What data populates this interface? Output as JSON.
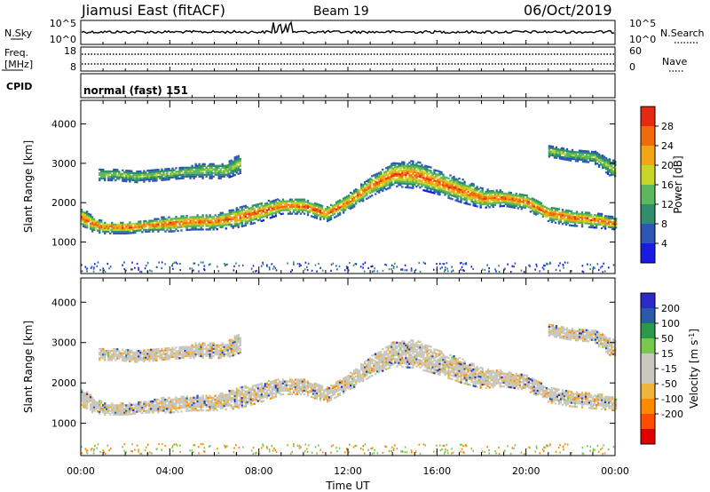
{
  "header": {
    "station": "Jiamusi East (fitACF)",
    "beam": "Beam 19",
    "date": "06/Oct/2019"
  },
  "noise_panel": {
    "left_label": "N.Sky",
    "right_label": "N.Search",
    "left_ticks": [
      "10^5",
      "10^0"
    ],
    "right_ticks": [
      "10^5",
      "10^0"
    ]
  },
  "freq_panel": {
    "label_line1": "Freq.",
    "label_line2": "[MHz]",
    "left_ticks": [
      "18",
      "8"
    ],
    "right_label": "Nave",
    "right_ticks": [
      "60",
      "0"
    ]
  },
  "cpid_panel": {
    "label": "CPID",
    "value": "normal (fast) 151"
  },
  "colors": {
    "power": [
      "#1a1ae6",
      "#2e57b5",
      "#2f8f6a",
      "#5cb85c",
      "#c4d628",
      "#f2a516",
      "#f06a0a",
      "#e62a10"
    ],
    "velocity": [
      "#e00000",
      "#ff4d00",
      "#ff8a00",
      "#f0b43c",
      "#c8c8c0",
      "#c8c8c0",
      "#78c850",
      "#2a9a4a",
      "#2a5aa8",
      "#2a2ac8"
    ]
  },
  "chart_data": [
    {
      "type": "heatmap",
      "name": "power",
      "ylabel": "Slant Range [km]",
      "y_ticks": [
        1000,
        2000,
        3000,
        4000
      ],
      "ylim": [
        200,
        4600
      ],
      "x_ticks": [
        "00:00",
        "04:00",
        "08:00",
        "12:00",
        "16:00",
        "20:00",
        "00:00"
      ],
      "colorbar": {
        "label": "Power [dB]",
        "ticks": [
          4,
          8,
          12,
          16,
          20,
          24,
          28
        ],
        "range": [
          0,
          32
        ]
      },
      "echo_bands": [
        {
          "hours": [
            0,
            0.5,
            1,
            2,
            3,
            4,
            5,
            6,
            7,
            8,
            9,
            10,
            11,
            12,
            13,
            14,
            15,
            16,
            17,
            18,
            19,
            20,
            21,
            22,
            23,
            24
          ],
          "center_km": [
            1600,
            1450,
            1350,
            1350,
            1400,
            1450,
            1500,
            1500,
            1600,
            1750,
            1900,
            1900,
            1700,
            2000,
            2400,
            2700,
            2700,
            2500,
            2300,
            2100,
            2100,
            2000,
            1700,
            1600,
            1550,
            1450
          ],
          "halfwidth_km": [
            250,
            200,
            150,
            150,
            150,
            200,
            200,
            200,
            250,
            250,
            200,
            200,
            200,
            200,
            250,
            300,
            350,
            300,
            300,
            250,
            200,
            200,
            200,
            200,
            200,
            150
          ]
        },
        {
          "hours": [
            0.8,
            1.5,
            2.5,
            3.5,
            4.5,
            5.5,
            6.5,
            7.2
          ],
          "center_km": [
            2700,
            2700,
            2650,
            2700,
            2750,
            2800,
            2800,
            3000
          ],
          "halfwidth_km": [
            150,
            150,
            150,
            150,
            150,
            200,
            200,
            250
          ]
        },
        {
          "hours": [
            21,
            22,
            23,
            24
          ],
          "center_km": [
            3300,
            3200,
            3150,
            2800
          ],
          "halfwidth_km": [
            150,
            150,
            150,
            250
          ]
        }
      ]
    },
    {
      "type": "heatmap",
      "name": "velocity",
      "ylabel": "Slant Range [km]",
      "xlabel": "Time UT",
      "y_ticks": [
        1000,
        2000,
        3000,
        4000
      ],
      "ylim": [
        200,
        4600
      ],
      "x_ticks": [
        "00:00",
        "04:00",
        "08:00",
        "12:00",
        "16:00",
        "20:00",
        "00:00"
      ],
      "colorbar": {
        "label_main": "Velocity [m s",
        "label_sup": "-1",
        "label_end": "]",
        "ticks": [
          "200",
          "100",
          "50",
          "15",
          "-15",
          "-50",
          "-100",
          "-200"
        ]
      }
    }
  ]
}
